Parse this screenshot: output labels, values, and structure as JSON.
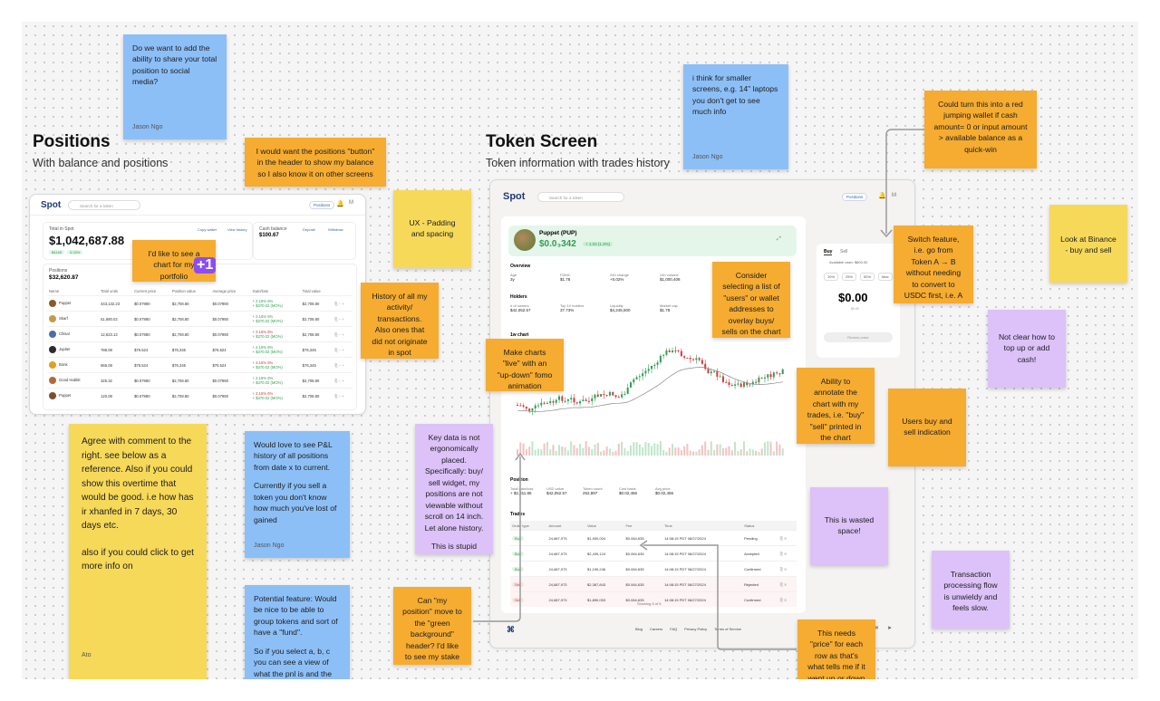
{
  "sections": {
    "positions": {
      "title": "Positions",
      "subtitle": "With balance and positions"
    },
    "token": {
      "title": "Token Screen",
      "subtitle": "Token information with trades history"
    }
  },
  "positions_screen": {
    "logo": "Spot",
    "search_placeholder": "Search for a token",
    "positions_button": "Positions",
    "total_label": "Total in Spot",
    "total_value": "$1,042,687.88",
    "badge1": "$4165",
    "badge2": "3.03%",
    "copy_wallet": "Copy wallet",
    "view_history": "View history",
    "cash_label": "Cash balance",
    "cash_value": "$100.67",
    "deposit": "Deposit",
    "withdraw": "Withdraw",
    "positions_label": "Positions",
    "positions_value": "$32,620.87",
    "headers": [
      "Name",
      "Total units",
      "Current price",
      "Position value",
      "Average price",
      "Gain/loss",
      "Total value"
    ],
    "rows": [
      {
        "name": "Puppet",
        "units": "443,132.23",
        "price": "$0.07980",
        "value": "$2,708.80",
        "avg": "$0.07980",
        "gain": "+ 2.16% 6%",
        "gain2": "+ $370.02 (MO%)",
        "total": "$2,708.80",
        "up": true
      },
      {
        "name": "Skarf",
        "units": "51,680.02",
        "price": "$0.07980",
        "value": "$2,708.80",
        "avg": "$0.07980",
        "gain": "+ 2.16% 6%",
        "gain2": "+ $370.02 (MO%)",
        "total": "$2,708.80",
        "up": true
      },
      {
        "name": "Chisal",
        "units": "12,623.12",
        "price": "$0.07980",
        "value": "$2,708.80",
        "avg": "$0.07980",
        "gain": "+ 2.16% 6%",
        "gain2": "+ $370.02 (MO%)",
        "total": "$2,708.80",
        "up": false
      },
      {
        "name": "Jupiter",
        "units": "788.08",
        "price": "$76.524",
        "value": "$76,345",
        "avg": "$76.524",
        "gain": "+ 2.16% 6%",
        "gain2": "+ $370.02 (MO%)",
        "total": "$76,345",
        "up": true
      },
      {
        "name": "Bonk",
        "units": "665.08",
        "price": "$76.524",
        "value": "$76,345",
        "avg": "$76.524",
        "gain": "+ 2.16% 6%",
        "gain2": "+ $370.02 (MO%)",
        "total": "$76,345",
        "up": false
      },
      {
        "name": "Good Habbit",
        "units": "325.32",
        "price": "$0.07980",
        "value": "$2,708.80",
        "avg": "$0.07980",
        "gain": "+ 2.16% 6%",
        "gain2": "+ $370.02 (MO%)",
        "total": "$2,708.80",
        "up": true
      },
      {
        "name": "Puppet",
        "units": "120.08",
        "price": "$0.07980",
        "value": "$2,708.80",
        "avg": "$0.07980",
        "gain": "+ 2.16% 6%",
        "gain2": "+ $370.02 (MO%)",
        "total": "$2,708.80",
        "up": false
      }
    ]
  },
  "token_screen": {
    "logo": "Spot",
    "search_placeholder": "Search for a token",
    "positions_button": "Positions",
    "token_name": "Puppet (PUP)",
    "price": "$0.0₃342",
    "change": "+ 1.03 (1.3%)",
    "overview_label": "Overview",
    "overview_headers": [
      "Age",
      "FDMC",
      "24h change",
      "24h volume"
    ],
    "overview_values": [
      "3y",
      "$1.78",
      "+0.02%",
      "$1,000,406"
    ],
    "holders_label": "Holders",
    "holders_headers": [
      "# of owners",
      "Top 10 holders",
      "Liquidity",
      "Market cap"
    ],
    "holders_values": [
      "$42,052.57",
      "37.73%",
      "$4,245,500",
      "$1.78"
    ],
    "chart_label": "1w chart",
    "position_label": "Position",
    "position_headers": [
      "Total gain/loss",
      "USD value",
      "Token count",
      "Cost basis",
      "Avg price"
    ],
    "position_values": [
      "+ $2,311.86",
      "$42,052.57",
      "252,897",
      "$0.02,456",
      "$0.02,456"
    ],
    "trades_label": "Trades",
    "trades_headers": [
      "Order type",
      "Amount",
      "Value",
      "Fee",
      "Time",
      "Status"
    ],
    "trades": [
      {
        "type": "Buy",
        "amount": "24,687,973",
        "value": "$1,900,004",
        "fee": "$0.064,635",
        "time": "14:08:15 PDT 08/27/2024",
        "status": "Pending"
      },
      {
        "type": "Buy",
        "amount": "24,687,973",
        "value": "$2,439,124",
        "fee": "$0.064,635",
        "time": "14:08:15 PDT 08/27/2024",
        "status": "Accepted"
      },
      {
        "type": "Buy",
        "amount": "24,687,973",
        "value": "$1,190,246",
        "fee": "$0.064,635",
        "time": "14:08:15 PDT 08/27/2024",
        "status": "Confirmed"
      },
      {
        "type": "Sell",
        "amount": "24,687,973",
        "value": "$2,367,843",
        "fee": "$0.064,635",
        "time": "14:08:15 PDT 08/27/2024",
        "status": "Rejected"
      },
      {
        "type": "Sell",
        "amount": "24,687,973",
        "value": "$1,890,053",
        "fee": "$0.064,635",
        "time": "14:08:15 PDT 08/27/2024",
        "status": "Confirmed"
      }
    ],
    "showing": "Showing 5 of 5",
    "footer_links": [
      "Blog",
      "Careers",
      "FAQ",
      "Privacy Policy",
      "Terms of Service"
    ],
    "buy_tab": "Buy",
    "sell_tab": "Sell",
    "available_cash": "Available cash: $800.00",
    "quick_amounts": [
      "10%",
      "25%",
      "50%",
      "Max"
    ],
    "amount_value": "$0.00",
    "amount_hint": "$0.00",
    "review_button": "Review order"
  },
  "notes": {
    "share": {
      "text": "Do we want to add the ability to share your total position to social media?",
      "author": "Jason Ngo"
    },
    "small_screens": {
      "text": "i think for smaller screens, e.g. 14\" laptops you don't get to see much info",
      "author": "Jason Ngo"
    },
    "positions_button": {
      "text": "I would want the positions \"button\" in the header to show my balance so I also know it on other screens"
    },
    "red_wallet": {
      "text": "Could turn this into a red jumping wallet if cash amount= 0 or input amount > available balance as a quick-win"
    },
    "padding": {
      "text": "UX - Padding and spacing"
    },
    "portfolio_chart": {
      "text": "I'd like to see a chart for my portfolio performance",
      "plus": "+1"
    },
    "history": {
      "text": "History of all my activity/ transactions. Also ones that did not originate in spot"
    },
    "switch": {
      "text": "Switch feature, i.e. go from Token A → B without needing to convert to USDC first, i.e. A - USDC - B"
    },
    "binance": {
      "text": "Look at Binance - buy and sell"
    },
    "overlay": {
      "text": "Consider selecting a list of \"users\" or wallet addresses to overlay buys/ sells on the chart"
    },
    "not_clear": {
      "text": "Not clear how to top up or add cash!"
    },
    "live_charts": {
      "text": "Make charts \"live\" with an \"up-down\" fomo animation"
    },
    "annotate": {
      "text": "Ability to annotate the chart with my trades, i.e. \"buy\" \"sell\" printed in the chart"
    },
    "users_indication": {
      "text": "Users buy and sell indication"
    },
    "agree": {
      "p1": "Agree with comment to the right. see below as a reference. Also if you could show this overtime that would be good. i.e how has ir xhanfed in 7 days, 30 days etc.",
      "p2": "also if you could click to get more info on",
      "author": "Ato"
    },
    "pnl": {
      "p1": "Would love to see P&L history of all positions from date x to current.",
      "p2": "Currently if you sell a token you don't know how much you've lost of gained",
      "author": "Jason Ngo"
    },
    "key_data": {
      "p1": "Key data is not ergonomically placed. Specifically: buy/ sell widget, my positions are not viewable without scroll on 14 inch. Let alone history.",
      "p2": "This is stupid"
    },
    "wasted": {
      "text": "This is wasted space!"
    },
    "tx_flow": {
      "text": "Transaction processing flow is unwieldy and feels slow."
    },
    "group_tokens": {
      "p1": "Potential feature: Would be nice to be able to group tokens and sort of have a \"fund\".",
      "p2": "So if you select a, b, c you can see a view of what the pnl is and the allocation"
    },
    "my_position": {
      "text": "Can \"my position\" move to the \"green background\" header? I'd like to see my stake in a token first"
    },
    "price_row": {
      "text": "This needs \"price\" for each row as that's what tells me if it went up or down since"
    }
  },
  "colors": {
    "blue_note": "#8dbff7",
    "orange_note": "#f5ac31",
    "yellow_note": "#f7d95a",
    "purple_note": "#dcc2f8",
    "gain": "#2f9e52",
    "loss": "#d43b3b"
  }
}
